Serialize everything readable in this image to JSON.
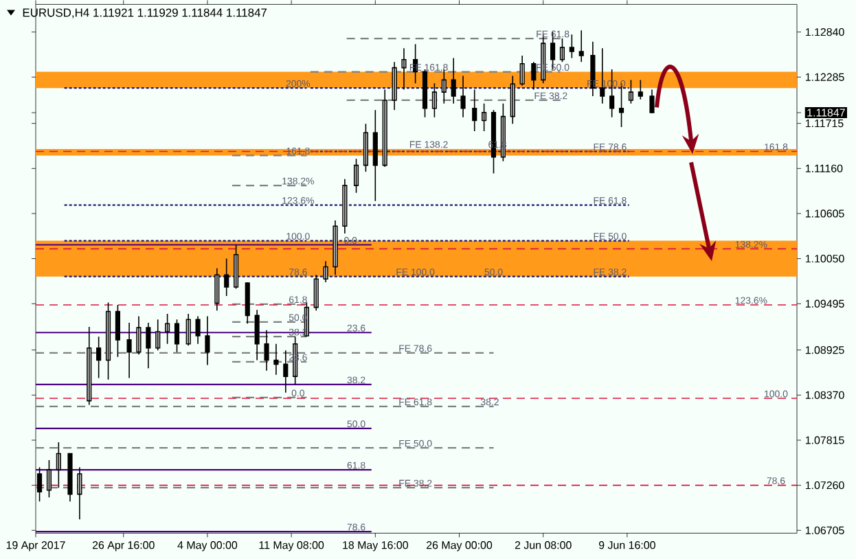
{
  "chart_data": {
    "type": "candlestick",
    "title": "EURUSD,H4  1.11921 1.11929 1.11844 1.11847",
    "color": "#000000",
    "x": [
      "2017-04-19T08:00",
      "2017-04-20T04:00",
      "2017-04-21T00:00",
      "2017-04-22T00:00",
      "2017-04-22T20:00",
      "2017-04-23T16:00",
      "2017-04-24T12:00",
      "2017-04-25T08:00",
      "2017-04-26T04:00",
      "2017-04-27T04:00",
      "2017-04-28T00:00",
      "2017-04-28T20:00",
      "2017-04-29T16:00",
      "2017-04-30T12:00",
      "2017-05-01T08:00",
      "2017-05-02T08:00",
      "2017-05-03T04:00",
      "2017-05-04T00:00",
      "2017-05-04T20:00",
      "2017-05-05T16:00",
      "2017-05-06T12:00",
      "2017-05-07T12:00",
      "2017-05-08T08:00",
      "2017-05-09T04:00",
      "2017-05-10T00:00",
      "2017-05-10T20:00",
      "2017-05-11T16:00",
      "2017-05-12T16:00",
      "2017-05-13T12:00",
      "2017-05-14T08:00",
      "2017-05-15T04:00",
      "2017-05-16T00:00",
      "2017-05-17T00:00",
      "2017-05-17T20:00",
      "2017-05-18T16:00",
      "2017-05-19T12:00",
      "2017-05-20T08:00",
      "2017-05-21T04:00",
      "2017-05-22T04:00",
      "2017-05-23T00:00",
      "2017-05-23T20:00",
      "2017-05-24T16:00",
      "2017-05-25T12:00",
      "2017-05-26T08:00",
      "2017-05-27T08:00",
      "2017-05-28T04:00",
      "2017-05-29T00:00",
      "2017-05-29T20:00",
      "2017-05-30T16:00",
      "2017-05-31T12:00",
      "2017-06-01T12:00",
      "2017-06-02T08:00",
      "2017-06-03T04:00",
      "2017-06-04T00:00",
      "2017-06-04T20:00",
      "2017-06-05T16:00",
      "2017-06-06T16:00",
      "2017-06-07T12:00",
      "2017-06-08T08:00",
      "2017-06-09T04:00",
      "2017-06-10T00:00",
      "2017-06-10T20:00",
      "2017-06-11T20:00"
    ],
    "ohlc": [
      [
        1.074,
        1.0748,
        1.0706,
        1.0718
      ],
      [
        1.072,
        1.0757,
        1.0711,
        1.0745
      ],
      [
        1.0745,
        1.0779,
        1.0723,
        1.0765
      ],
      [
        1.0765,
        1.0765,
        1.0706,
        1.0715
      ],
      [
        1.0715,
        1.0748,
        1.0684,
        1.074
      ],
      [
        1.083,
        1.0921,
        1.0825,
        1.0895
      ],
      [
        1.0895,
        1.0909,
        1.0858,
        1.088
      ],
      [
        1.088,
        1.0951,
        1.0856,
        1.094
      ],
      [
        1.094,
        1.0948,
        1.0884,
        1.0905
      ],
      [
        1.0905,
        1.0926,
        1.0858,
        1.089
      ],
      [
        1.089,
        1.0934,
        1.0887,
        1.092
      ],
      [
        1.092,
        1.0926,
        1.087,
        1.0895
      ],
      [
        1.0895,
        1.093,
        1.0892,
        1.0915
      ],
      [
        1.0915,
        1.0937,
        1.09,
        1.0925
      ],
      [
        1.0925,
        1.093,
        1.089,
        1.09
      ],
      [
        1.09,
        1.0937,
        1.0898,
        1.093
      ],
      [
        1.093,
        1.0934,
        1.09,
        1.091
      ],
      [
        1.091,
        1.0934,
        1.0874,
        1.089
      ],
      [
        1.095,
        1.0993,
        1.0941,
        1.0985
      ],
      [
        1.0985,
        1.1005,
        1.0959,
        1.097
      ],
      [
        1.097,
        1.1022,
        1.0968,
        1.101
      ],
      [
        1.0975,
        1.0976,
        1.0925,
        1.0935
      ],
      [
        1.0935,
        1.0942,
        1.088,
        1.09
      ],
      [
        1.09,
        1.0917,
        1.0867,
        1.088
      ],
      [
        1.088,
        1.09,
        1.0862,
        1.0875
      ],
      [
        1.0875,
        1.0892,
        1.084,
        1.086
      ],
      [
        1.086,
        1.0909,
        1.085,
        1.09
      ],
      [
        1.091,
        1.0951,
        1.0909,
        1.0945
      ],
      [
        1.0945,
        1.0985,
        1.0941,
        1.098
      ],
      [
        1.098,
        1.1002,
        1.0976,
        1.0995
      ],
      [
        1.0995,
        1.1052,
        1.0985,
        1.1045
      ],
      [
        1.1045,
        1.1103,
        1.1036,
        1.1095
      ],
      [
        1.1095,
        1.1128,
        1.1086,
        1.112
      ],
      [
        1.112,
        1.1171,
        1.1112,
        1.116
      ],
      [
        1.116,
        1.1188,
        1.1076,
        1.112
      ],
      [
        1.112,
        1.1213,
        1.1118,
        1.12
      ],
      [
        1.12,
        1.1247,
        1.1188,
        1.124
      ],
      [
        1.124,
        1.1264,
        1.1213,
        1.125
      ],
      [
        1.125,
        1.1269,
        1.1221,
        1.1235
      ],
      [
        1.1235,
        1.1238,
        1.1179,
        1.119
      ],
      [
        1.119,
        1.1221,
        1.1179,
        1.121
      ],
      [
        1.121,
        1.1238,
        1.1196,
        1.1225
      ],
      [
        1.1225,
        1.1252,
        1.1196,
        1.1205
      ],
      [
        1.1205,
        1.123,
        1.1179,
        1.119
      ],
      [
        1.119,
        1.1213,
        1.1162,
        1.1175
      ],
      [
        1.1175,
        1.1196,
        1.1162,
        1.1185
      ],
      [
        1.1185,
        1.1188,
        1.111,
        1.113
      ],
      [
        1.113,
        1.1196,
        1.1125,
        1.118
      ],
      [
        1.118,
        1.123,
        1.1171,
        1.122
      ],
      [
        1.122,
        1.1255,
        1.1218,
        1.1245
      ],
      [
        1.1245,
        1.1247,
        1.1213,
        1.1225
      ],
      [
        1.1225,
        1.1281,
        1.1221,
        1.127
      ],
      [
        1.127,
        1.1284,
        1.1238,
        1.125
      ],
      [
        1.125,
        1.1276,
        1.1247,
        1.1265
      ],
      [
        1.1265,
        1.1281,
        1.1252,
        1.126
      ],
      [
        1.126,
        1.1286,
        1.1247,
        1.1255
      ],
      [
        1.1255,
        1.1272,
        1.1205,
        1.1215
      ],
      [
        1.1215,
        1.1264,
        1.1196,
        1.1205
      ],
      [
        1.1205,
        1.1238,
        1.1179,
        1.119
      ],
      [
        1.119,
        1.1221,
        1.1167,
        1.1185
      ],
      [
        1.12,
        1.1225,
        1.1196,
        1.121
      ],
      [
        1.121,
        1.1225,
        1.1201,
        1.1205
      ],
      [
        1.1205,
        1.1213,
        1.1184,
        1.11847
      ]
    ],
    "xlim": [
      "2017-04-19T00:00",
      "2017-06-24T12:00"
    ],
    "ylim": [
      1.0667,
      1.1318
    ],
    "xticks": [
      {
        "value": "2017-04-19T00:00",
        "label": "19 Apr 2017"
      },
      {
        "value": "2017-04-26T16:00",
        "label": "26 Apr 16:00"
      },
      {
        "value": "2017-05-04T00:00",
        "label": "4 May 00:00"
      },
      {
        "value": "2017-05-11T08:00",
        "label": "11 May 08:00"
      },
      {
        "value": "2017-05-18T16:00",
        "label": "18 May 16:00"
      },
      {
        "value": "2017-05-26T00:00",
        "label": "26 May 00:00"
      },
      {
        "value": "2017-06-02T08:00",
        "label": "2 Jun 08:00"
      },
      {
        "value": "2017-06-09T16:00",
        "label": "9 Jun 16:00"
      }
    ],
    "yticks": [
      {
        "value": 1.1284,
        "label": "1.12840"
      },
      {
        "value": 1.12285,
        "label": "1.12285"
      },
      1.11847,
      {
        "value": 1.11715,
        "label": "1.11715"
      },
      {
        "value": 1.1116,
        "label": "1.11160"
      },
      {
        "value": 1.10605,
        "label": "1.10605"
      },
      {
        "value": 1.1005,
        "label": "1.10050"
      },
      {
        "value": 1.09495,
        "label": "1.09495"
      },
      {
        "value": 1.08925,
        "label": "1.08925"
      },
      {
        "value": 1.0837,
        "label": "1.08370"
      },
      {
        "value": 1.07815,
        "label": "1.07815"
      },
      {
        "value": 1.0726,
        "label": "1.07260"
      },
      {
        "value": 1.06705,
        "label": "1.06705"
      }
    ],
    "bands": [
      {
        "axis": "y",
        "from": 1.1215,
        "to": 1.1235,
        "color": "#ff9a1a"
      },
      {
        "axis": "y",
        "from": 1.1132,
        "to": 1.114,
        "color": "#ff9a1a"
      },
      {
        "axis": "y",
        "from": 1.0983,
        "to": 1.1027,
        "color": "#ff9a1a"
      }
    ],
    "ref_lines": [
      {
        "axis": "y",
        "value": 1.1137,
        "color": "#dc143c",
        "line_style": "dashed"
      },
      {
        "axis": "y",
        "value": 1.1017,
        "color": "#dc143c",
        "line_style": "dashed"
      },
      {
        "axis": "y",
        "value": 1.0948,
        "color": "#dc143c",
        "line_style": "dashed"
      },
      {
        "axis": "y",
        "value": 1.0833,
        "color": "#dc143c",
        "line_style": "dashed"
      },
      {
        "axis": "y",
        "value": 1.0726,
        "color": "#dc143c",
        "line_style": "dashed"
      }
    ],
    "series": [
      {
        "type": "line",
        "color": "#4b0082",
        "line_style": "solid",
        "x": [
          "2017-04-19T00:00",
          "2017-05-18T08:00"
        ],
        "values": [
          1.1022,
          1.1022
        ]
      },
      {
        "type": "line",
        "color": "#4b0082",
        "line_style": "solid",
        "x": [
          "2017-04-19T00:00",
          "2017-05-18T08:00"
        ],
        "values": [
          1.0914,
          1.0914
        ]
      },
      {
        "type": "line",
        "color": "#4b0082",
        "line_style": "solid",
        "x": [
          "2017-04-19T00:00",
          "2017-05-18T08:00"
        ],
        "values": [
          1.085,
          1.085
        ]
      },
      {
        "type": "line",
        "color": "#4b0082",
        "line_style": "solid",
        "x": [
          "2017-04-19T00:00",
          "2017-05-18T08:00"
        ],
        "values": [
          1.0796,
          1.0796
        ]
      },
      {
        "type": "line",
        "color": "#4b0082",
        "line_style": "solid",
        "x": [
          "2017-04-19T00:00",
          "2017-05-18T08:00"
        ],
        "values": [
          1.0745,
          1.0745
        ]
      },
      {
        "type": "line",
        "color": "#4b0082",
        "line_style": "solid",
        "x": [
          "2017-04-19T00:00",
          "2017-05-18T08:00"
        ],
        "values": [
          1.0669,
          1.0669
        ]
      },
      {
        "type": "line",
        "color": "#191970",
        "line_style": "dotted",
        "x": [
          "2017-04-21T12:00",
          "2017-05-12T16:00"
        ],
        "values": [
          1.1215,
          1.1215
        ]
      },
      {
        "type": "line",
        "color": "#191970",
        "line_style": "dotted",
        "x": [
          "2017-04-21T12:00",
          "2017-05-12T16:00"
        ],
        "values": [
          1.1071,
          1.1071
        ]
      },
      {
        "type": "line",
        "color": "#191970",
        "line_style": "dotted",
        "x": [
          "2017-04-21T12:00",
          "2017-05-12T16:00"
        ],
        "values": [
          1.1027,
          1.1027
        ]
      },
      {
        "type": "line",
        "color": "#191970",
        "line_style": "dotted",
        "x": [
          "2017-04-21T12:00",
          "2017-05-12T16:00"
        ],
        "values": [
          1.0983,
          1.0983
        ]
      },
      {
        "type": "line",
        "color": "#191970",
        "line_style": "dotted",
        "x": [
          "2017-05-13T00:00",
          "2017-06-09T20:00"
        ],
        "values": [
          1.1215,
          1.1215
        ]
      },
      {
        "type": "line",
        "color": "#191970",
        "line_style": "dotted",
        "x": [
          "2017-05-13T00:00",
          "2017-06-09T20:00"
        ],
        "values": [
          1.1137,
          1.1137
        ]
      },
      {
        "type": "line",
        "color": "#191970",
        "line_style": "dotted",
        "x": [
          "2017-05-13T00:00",
          "2017-06-09T20:00"
        ],
        "values": [
          1.1071,
          1.1071
        ]
      },
      {
        "type": "line",
        "color": "#191970",
        "line_style": "dotted",
        "x": [
          "2017-05-13T00:00",
          "2017-06-09T20:00"
        ],
        "values": [
          1.1027,
          1.1027
        ]
      },
      {
        "type": "line",
        "color": "#191970",
        "line_style": "dotted",
        "x": [
          "2017-05-13T00:00",
          "2017-06-09T20:00"
        ],
        "values": [
          1.0983,
          1.0983
        ]
      },
      {
        "type": "line",
        "color": "#808080",
        "line_style": "dashed",
        "x": [
          "2017-05-06T04:00",
          "2017-05-12T16:00"
        ],
        "values": [
          1.1132,
          1.1132
        ]
      },
      {
        "type": "line",
        "color": "#808080",
        "line_style": "dashed",
        "x": [
          "2017-05-06T04:00",
          "2017-05-12T16:00"
        ],
        "values": [
          1.1095,
          1.1095
        ]
      },
      {
        "type": "line",
        "color": "#808080",
        "line_style": "dashed",
        "x": [
          "2017-05-06T04:00",
          "2017-05-12T16:00"
        ],
        "values": [
          1.0949,
          1.0949
        ]
      },
      {
        "type": "line",
        "color": "#808080",
        "line_style": "dashed",
        "x": [
          "2017-05-06T04:00",
          "2017-05-12T16:00"
        ],
        "values": [
          1.0927,
          1.0927
        ]
      },
      {
        "type": "line",
        "color": "#808080",
        "line_style": "dashed",
        "x": [
          "2017-05-06T04:00",
          "2017-05-12T16:00"
        ],
        "values": [
          1.0909,
          1.0909
        ]
      },
      {
        "type": "line",
        "color": "#808080",
        "line_style": "dashed",
        "x": [
          "2017-05-06T04:00",
          "2017-05-12T16:00"
        ],
        "values": [
          1.0878,
          1.0878
        ]
      },
      {
        "type": "line",
        "color": "#808080",
        "line_style": "dashed",
        "x": [
          "2017-05-06T04:00",
          "2017-05-12T16:00"
        ],
        "values": [
          1.0834,
          1.0834
        ]
      },
      {
        "type": "line",
        "color": "#808080",
        "line_style": "dashed",
        "x": [
          "2017-05-16T04:00",
          "2017-06-03T20:00"
        ],
        "values": [
          1.1276,
          1.1276
        ]
      },
      {
        "type": "line",
        "color": "#808080",
        "line_style": "dashed",
        "x": [
          "2017-05-13T00:00",
          "2017-06-03T20:00"
        ],
        "values": [
          1.1235,
          1.1235
        ]
      },
      {
        "type": "line",
        "color": "#808080",
        "line_style": "dashed",
        "x": [
          "2017-05-16T04:00",
          "2017-06-03T20:00"
        ],
        "values": [
          1.12,
          1.12
        ]
      },
      {
        "type": "line",
        "color": "#808080",
        "line_style": "dashed",
        "x": [
          "2017-04-19T00:00",
          "2017-05-29T00:00"
        ],
        "values": [
          1.0889,
          1.0889
        ]
      },
      {
        "type": "line",
        "color": "#808080",
        "line_style": "dashed",
        "x": [
          "2017-04-19T00:00",
          "2017-05-29T00:00"
        ],
        "values": [
          1.0823,
          1.0823
        ]
      },
      {
        "type": "line",
        "color": "#808080",
        "line_style": "dashed",
        "x": [
          "2017-04-19T00:00",
          "2017-05-29T00:00"
        ],
        "values": [
          1.0772,
          1.0772
        ]
      },
      {
        "type": "line",
        "color": "#808080",
        "line_style": "dashed",
        "x": [
          "2017-04-19T00:00",
          "2017-05-29T00:00"
        ],
        "values": [
          1.0723,
          1.0723
        ]
      }
    ],
    "annotations": [
      {
        "text": "200%",
        "x": "2017-05-11T22:00",
        "y": 1.1215
      },
      {
        "text": "161.8",
        "x": "2017-05-11T22:00",
        "y": 1.1132
      },
      {
        "text": "138.2%",
        "x": "2017-05-11T22:00",
        "y": 1.1095
      },
      {
        "text": "123.6%",
        "x": "2017-05-11T22:00",
        "y": 1.1071
      },
      {
        "text": "100.0",
        "x": "2017-05-11T22:00",
        "y": 1.1027
      },
      {
        "text": "78.6",
        "x": "2017-05-11T22:00",
        "y": 1.0983
      },
      {
        "text": "61.8",
        "x": "2017-05-11T22:00",
        "y": 1.0949
      },
      {
        "text": "50.0",
        "x": "2017-05-11T22:00",
        "y": 1.0927
      },
      {
        "text": "38.2",
        "x": "2017-05-11T22:00",
        "y": 1.0909
      },
      {
        "text": "23.6",
        "x": "2017-05-11T22:00",
        "y": 1.0878
      },
      {
        "text": "0.0",
        "x": "2017-05-11T22:00",
        "y": 1.0834
      },
      {
        "text": "0.0",
        "x": "2017-05-16T12:00",
        "y": 1.1022
      },
      {
        "text": "23.6",
        "x": "2017-05-17T00:00",
        "y": 1.0914
      },
      {
        "text": "38.2",
        "x": "2017-05-17T00:00",
        "y": 1.085
      },
      {
        "text": "50.0",
        "x": "2017-05-17T00:00",
        "y": 1.0796
      },
      {
        "text": "61.8",
        "x": "2017-05-17T00:00",
        "y": 1.0745
      },
      {
        "text": "78.6",
        "x": "2017-05-17T00:00",
        "y": 1.0669
      },
      {
        "text": "FE 161.8",
        "x": "2017-05-23T08:00",
        "y": 1.1235
      },
      {
        "text": "FE 61.8",
        "x": "2017-06-03T04:00",
        "y": 1.1276
      },
      {
        "text": "FE 50.0",
        "x": "2017-06-03T04:00",
        "y": 1.1235
      },
      {
        "text": "FE 38.2",
        "x": "2017-06-03T00:00",
        "y": 1.12
      },
      {
        "text": "FE 100.0",
        "x": "2017-06-07T20:00",
        "y": 1.1215
      },
      {
        "text": "FE 138.2",
        "x": "2017-05-23T08:00",
        "y": 1.114
      },
      {
        "text": "61.8",
        "x": "2017-05-29T08:00",
        "y": 1.114
      },
      {
        "text": "FE 78.6",
        "x": "2017-06-08T04:00",
        "y": 1.1137
      },
      {
        "text": "FE 61.8",
        "x": "2017-06-08T04:00",
        "y": 1.1071
      },
      {
        "text": "FE 50.0",
        "x": "2017-06-08T04:00",
        "y": 1.1027
      },
      {
        "text": "FE 38.2",
        "x": "2017-06-08T04:00",
        "y": 1.0983
      },
      {
        "text": "FE 100.0",
        "x": "2017-05-22T04:00",
        "y": 1.0983
      },
      {
        "text": "50.0",
        "x": "2017-05-29T00:00",
        "y": 1.0983
      },
      {
        "text": "FE 78.6",
        "x": "2017-05-22T04:00",
        "y": 1.0889
      },
      {
        "text": "FE 61.8",
        "x": "2017-05-22T04:00",
        "y": 1.0823
      },
      {
        "text": "38.2",
        "x": "2017-05-28T16:00",
        "y": 1.0823
      },
      {
        "text": "FE 50.0",
        "x": "2017-05-22T04:00",
        "y": 1.0772
      },
      {
        "text": "FE 38.2",
        "x": "2017-05-22T04:00",
        "y": 1.0723
      },
      {
        "text": "161.8",
        "x": "2017-06-22T16:00",
        "y": 1.1137
      },
      {
        "text": "138.2%",
        "x": "2017-06-20T12:00",
        "y": 1.1017
      },
      {
        "text": "123.6%",
        "x": "2017-06-20T12:00",
        "y": 1.0948
      },
      {
        "text": "100.0",
        "x": "2017-06-22T16:00",
        "y": 1.0833
      },
      {
        "text": "78.6",
        "x": "2017-06-22T16:00",
        "y": 1.0726
      }
    ]
  }
}
